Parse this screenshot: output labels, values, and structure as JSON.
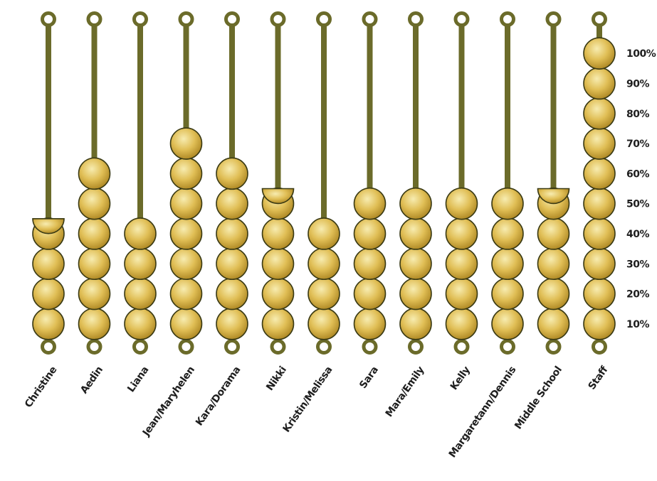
{
  "chart_data": {
    "type": "bar",
    "title": "",
    "xlabel": "",
    "ylabel": "",
    "ylim": [
      0,
      100
    ],
    "grid": false,
    "legend": "none",
    "categories": [
      "Christine",
      "Aedin",
      "Liana",
      "Jean/Maryhelen",
      "Kara/Dorama",
      "Nikki",
      "Kristin/Melissa",
      "Sara",
      "Mara/Emily",
      "Kelly",
      "Margaretann/Dennis",
      "Middle School",
      "Staff"
    ],
    "values": [
      45,
      60,
      40,
      70,
      60,
      55,
      40,
      50,
      50,
      50,
      50,
      55,
      100
    ],
    "y_tick_labels": [
      "10%",
      "20%",
      "30%",
      "40%",
      "50%",
      "60%",
      "70%",
      "80%",
      "90%",
      "100%"
    ],
    "colors": {
      "rod": "#6b6b2a",
      "bead_light": "#f5e8a3",
      "bead_mid": "#e2c25a",
      "bead_dark": "#b38f2a",
      "bead_outline": "#3a3a14",
      "ring": "#6b6b2a"
    }
  }
}
